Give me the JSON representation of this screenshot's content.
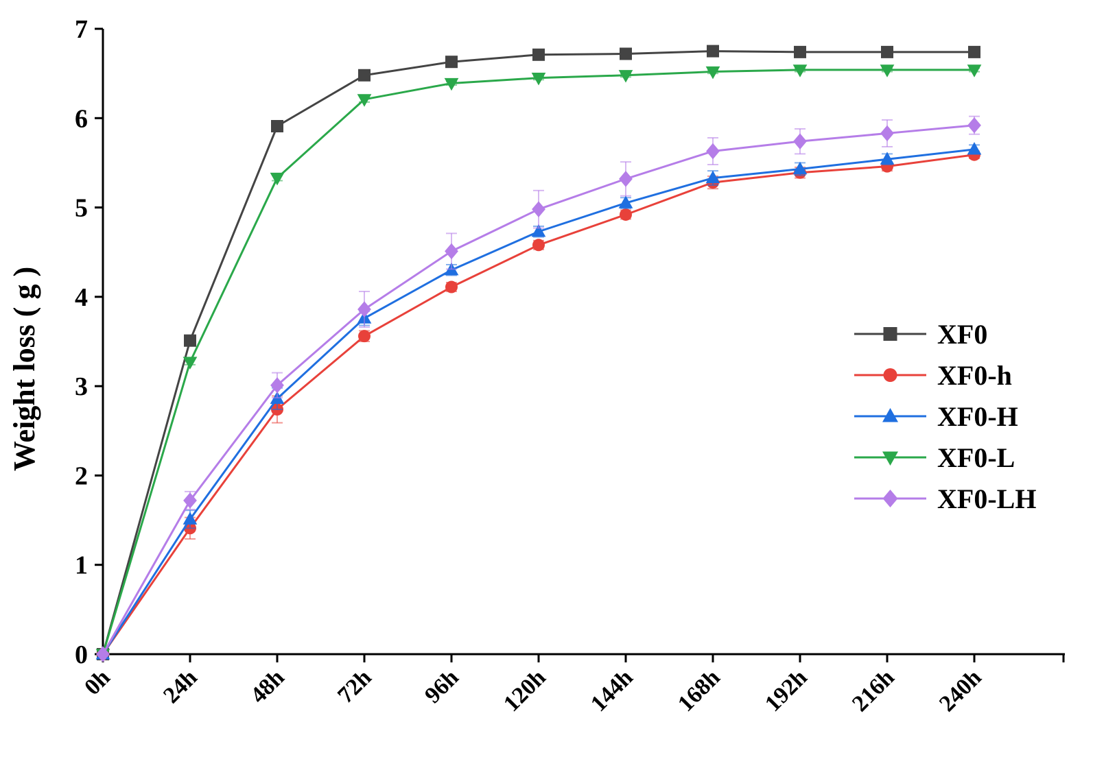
{
  "chart_data": {
    "type": "line",
    "title": "",
    "xlabel": "",
    "ylabel": "Weight loss ( g )",
    "x": [
      "0h",
      "24h",
      "48h",
      "72h",
      "96h",
      "120h",
      "144h",
      "168h",
      "192h",
      "216h",
      "240h"
    ],
    "yticks": [
      "0",
      "1",
      "2",
      "3",
      "4",
      "5",
      "6",
      "7"
    ],
    "ylim": [
      0,
      7
    ],
    "grid": false,
    "legend_position": "right-center",
    "series": [
      {
        "name": "XF0",
        "color": "#444444",
        "marker": "square",
        "values": [
          0,
          3.51,
          5.91,
          6.48,
          6.63,
          6.71,
          6.72,
          6.75,
          6.74,
          6.74,
          6.74
        ],
        "errors": [
          0,
          0.03,
          0.03,
          0.03,
          0.03,
          0.02,
          0.02,
          0.02,
          0.02,
          0.02,
          0.02
        ]
      },
      {
        "name": "XF0-h",
        "color": "#e8413a",
        "marker": "circle",
        "values": [
          0,
          1.41,
          2.74,
          3.56,
          4.11,
          4.58,
          4.92,
          5.28,
          5.39,
          5.46,
          5.59
        ],
        "errors": [
          0,
          0.12,
          0.15,
          0.06,
          0.05,
          0.05,
          0.05,
          0.07,
          0.06,
          0.05,
          0.04
        ]
      },
      {
        "name": "XF0-H",
        "color": "#1f6fe0",
        "marker": "triangle-up",
        "values": [
          0,
          1.51,
          2.86,
          3.76,
          4.3,
          4.73,
          5.05,
          5.33,
          5.43,
          5.54,
          5.65
        ],
        "errors": [
          0,
          0.1,
          0.12,
          0.08,
          0.06,
          0.06,
          0.06,
          0.08,
          0.07,
          0.06,
          0.05
        ]
      },
      {
        "name": "XF0-L",
        "color": "#2aa84a",
        "marker": "triangle-down",
        "values": [
          0,
          3.27,
          5.33,
          6.21,
          6.39,
          6.45,
          6.48,
          6.52,
          6.54,
          6.54,
          6.54
        ],
        "errors": [
          0,
          0.03,
          0.03,
          0.03,
          0.02,
          0.02,
          0.02,
          0.02,
          0.02,
          0.02,
          0.02
        ]
      },
      {
        "name": "XF0-LH",
        "color": "#b57de8",
        "marker": "diamond",
        "values": [
          0,
          1.72,
          3.01,
          3.86,
          4.51,
          4.98,
          5.32,
          5.63,
          5.74,
          5.83,
          5.92
        ],
        "errors": [
          0,
          0.1,
          0.14,
          0.2,
          0.2,
          0.21,
          0.19,
          0.15,
          0.14,
          0.15,
          0.1
        ]
      }
    ]
  }
}
